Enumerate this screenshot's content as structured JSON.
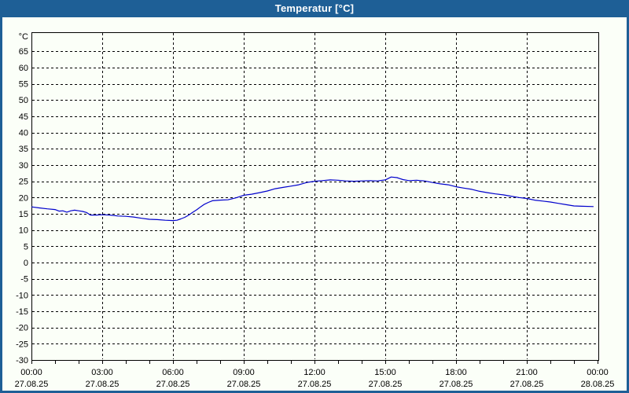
{
  "window": {
    "title": "Temperatur [°C]"
  },
  "colors": {
    "titlebar": "#1e5f96",
    "window_border": "#1e5f96",
    "client_background": "#fbfff8",
    "grid": "#000000",
    "axis": "#000000",
    "series_line": "#0000cc",
    "title_text": "#ffffff",
    "label_text": "#000000"
  },
  "chart_data": {
    "type": "line",
    "title": "Temperatur [°C]",
    "unit_label": "°C",
    "xlabel": "",
    "ylabel": "°C",
    "ylim": [
      -30,
      70.85
    ],
    "xlim_hours": [
      0,
      24
    ],
    "grid": true,
    "y_ticks": [
      65,
      60,
      55,
      50,
      45,
      40,
      35,
      30,
      25,
      20,
      15,
      10,
      5,
      0,
      -5,
      -10,
      -15,
      -20,
      -25,
      -30
    ],
    "x_ticks": [
      {
        "time": "00:00",
        "date": "27.08.25",
        "hour": 0
      },
      {
        "time": "03:00",
        "date": "27.08.25",
        "hour": 3
      },
      {
        "time": "06:00",
        "date": "27.08.25",
        "hour": 6
      },
      {
        "time": "09:00",
        "date": "27.08.25",
        "hour": 9
      },
      {
        "time": "12:00",
        "date": "27.08.25",
        "hour": 12
      },
      {
        "time": "15:00",
        "date": "27.08.25",
        "hour": 15
      },
      {
        "time": "18:00",
        "date": "27.08.25",
        "hour": 18
      },
      {
        "time": "21:00",
        "date": "27.08.25",
        "hour": 21
      },
      {
        "time": "00:00",
        "date": "28.08.25",
        "hour": 24
      }
    ],
    "minor_tick_interval_hours": 1,
    "major_tick_interval_hours": 3,
    "series": [
      {
        "name": "Temperatur",
        "color": "#0000cc",
        "points": [
          [
            0,
            17.1
          ],
          [
            0.33,
            16.8
          ],
          [
            0.67,
            16.5
          ],
          [
            1.0,
            16.3
          ],
          [
            1.17,
            15.8
          ],
          [
            1.33,
            15.9
          ],
          [
            1.5,
            15.5
          ],
          [
            1.67,
            15.9
          ],
          [
            1.83,
            16.1
          ],
          [
            2.0,
            15.9
          ],
          [
            2.17,
            15.7
          ],
          [
            2.33,
            15.4
          ],
          [
            2.5,
            14.6
          ],
          [
            2.75,
            14.6
          ],
          [
            3.0,
            14.7
          ],
          [
            3.33,
            14.6
          ],
          [
            3.67,
            14.3
          ],
          [
            4.0,
            14.2
          ],
          [
            4.33,
            14.0
          ],
          [
            4.67,
            13.6
          ],
          [
            5.0,
            13.3
          ],
          [
            5.33,
            13.2
          ],
          [
            5.67,
            13.0
          ],
          [
            6.0,
            12.9
          ],
          [
            6.17,
            13.0
          ],
          [
            6.33,
            13.4
          ],
          [
            6.5,
            13.9
          ],
          [
            6.67,
            14.6
          ],
          [
            6.83,
            15.4
          ],
          [
            7.0,
            16.2
          ],
          [
            7.17,
            17.1
          ],
          [
            7.33,
            17.9
          ],
          [
            7.5,
            18.5
          ],
          [
            7.67,
            19.0
          ],
          [
            8.0,
            19.2
          ],
          [
            8.33,
            19.3
          ],
          [
            8.67,
            19.9
          ],
          [
            9.0,
            20.7
          ],
          [
            9.33,
            21.0
          ],
          [
            9.67,
            21.5
          ],
          [
            10.0,
            22.0
          ],
          [
            10.33,
            22.7
          ],
          [
            10.67,
            23.1
          ],
          [
            11.0,
            23.5
          ],
          [
            11.33,
            23.9
          ],
          [
            11.67,
            24.6
          ],
          [
            12.0,
            25.0
          ],
          [
            12.33,
            25.2
          ],
          [
            12.67,
            25.4
          ],
          [
            13.0,
            25.3
          ],
          [
            13.33,
            25.1
          ],
          [
            13.67,
            25.0
          ],
          [
            14.0,
            25.1
          ],
          [
            14.33,
            25.2
          ],
          [
            14.67,
            25.1
          ],
          [
            15.0,
            25.4
          ],
          [
            15.25,
            26.3
          ],
          [
            15.5,
            26.1
          ],
          [
            15.75,
            25.5
          ],
          [
            16.0,
            25.2
          ],
          [
            16.33,
            25.3
          ],
          [
            16.67,
            25.1
          ],
          [
            17.0,
            24.6
          ],
          [
            17.33,
            24.2
          ],
          [
            17.67,
            23.9
          ],
          [
            18.0,
            23.3
          ],
          [
            18.33,
            22.9
          ],
          [
            18.67,
            22.5
          ],
          [
            19.0,
            21.9
          ],
          [
            19.33,
            21.5
          ],
          [
            19.67,
            21.1
          ],
          [
            20.0,
            20.8
          ],
          [
            20.33,
            20.4
          ],
          [
            20.67,
            20.0
          ],
          [
            21.0,
            19.7
          ],
          [
            21.33,
            19.2
          ],
          [
            21.67,
            18.9
          ],
          [
            22.0,
            18.6
          ],
          [
            22.33,
            18.2
          ],
          [
            22.67,
            17.8
          ],
          [
            23.0,
            17.4
          ],
          [
            23.33,
            17.3
          ],
          [
            23.83,
            17.2
          ]
        ]
      }
    ],
    "legend": null
  }
}
